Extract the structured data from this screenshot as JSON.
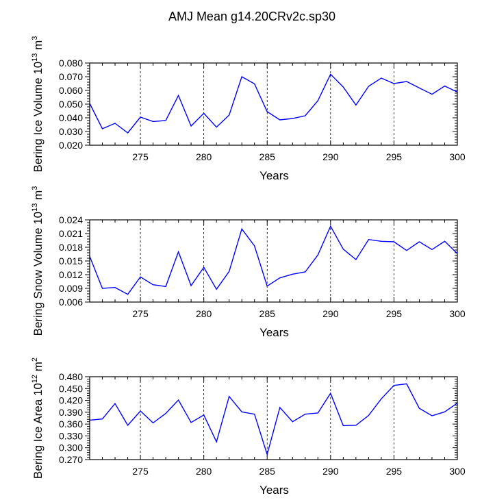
{
  "chart_data": {
    "title": "AMJ Mean g14.20CRv2c.sp30",
    "panels": [
      {
        "name": "ice-volume",
        "type": "line",
        "ylabel": "Bering Ice Volume 10",
        "ylabel_exp": "13",
        "ylabel_unit": " m",
        "ylabel_unit_exp": "3",
        "xlabel": "Years",
        "xlim": [
          271,
          300
        ],
        "ylim": [
          0.02,
          0.08
        ],
        "yticks": [
          "0.020",
          "0.030",
          "0.040",
          "0.050",
          "0.060",
          "0.070",
          "0.080"
        ],
        "xticks": [
          "275",
          "280",
          "285",
          "290",
          "295",
          "300"
        ],
        "color": "#0000ff",
        "x": [
          271,
          272,
          273,
          274,
          275,
          276,
          277,
          278,
          279,
          280,
          281,
          282,
          283,
          284,
          285,
          286,
          287,
          288,
          289,
          290,
          291,
          292,
          293,
          294,
          295,
          296,
          297,
          298,
          299,
          300
        ],
        "values": [
          0.0505,
          0.032,
          0.036,
          0.029,
          0.0405,
          0.0373,
          0.038,
          0.0563,
          0.034,
          0.0433,
          0.0332,
          0.042,
          0.07,
          0.0648,
          0.0445,
          0.0385,
          0.0395,
          0.0415,
          0.0525,
          0.0718,
          0.0625,
          0.0493,
          0.063,
          0.069,
          0.065,
          0.0665,
          0.0618,
          0.0572,
          0.0632,
          0.0588
        ]
      },
      {
        "name": "snow-volume",
        "type": "line",
        "ylabel": "Bering Snow Volume 10",
        "ylabel_exp": "13",
        "ylabel_unit": " m",
        "ylabel_unit_exp": "3",
        "xlabel": "Years",
        "xlim": [
          271,
          300
        ],
        "ylim": [
          0.006,
          0.024
        ],
        "yticks": [
          "0.006",
          "0.009",
          "0.012",
          "0.015",
          "0.018",
          "0.021",
          "0.024"
        ],
        "xticks": [
          "275",
          "280",
          "285",
          "290",
          "295",
          "300"
        ],
        "color": "#0000ff",
        "x": [
          271,
          272,
          273,
          274,
          275,
          276,
          277,
          278,
          279,
          280,
          281,
          282,
          283,
          284,
          285,
          286,
          287,
          288,
          289,
          290,
          291,
          292,
          293,
          294,
          295,
          296,
          297,
          298,
          299,
          300
        ],
        "values": [
          0.016,
          0.009,
          0.0092,
          0.0077,
          0.0115,
          0.0098,
          0.0094,
          0.017,
          0.0096,
          0.0136,
          0.0088,
          0.0127,
          0.022,
          0.0183,
          0.0095,
          0.0113,
          0.0121,
          0.0126,
          0.0163,
          0.0226,
          0.0176,
          0.0153,
          0.0197,
          0.0193,
          0.0192,
          0.0173,
          0.0192,
          0.0175,
          0.0193,
          0.0166
        ]
      },
      {
        "name": "ice-area",
        "type": "line",
        "ylabel": "Bering Ice Area 10",
        "ylabel_exp": "12",
        "ylabel_unit": " m",
        "ylabel_unit_exp": "2",
        "xlabel": "Years",
        "xlim": [
          271,
          300
        ],
        "ylim": [
          0.27,
          0.48
        ],
        "yticks": [
          "0.270",
          "0.300",
          "0.330",
          "0.360",
          "0.390",
          "0.420",
          "0.450",
          "0.480"
        ],
        "xticks": [
          "275",
          "280",
          "285",
          "290",
          "295",
          "300"
        ],
        "color": "#0000ff",
        "x": [
          271,
          272,
          273,
          274,
          275,
          276,
          277,
          278,
          279,
          280,
          281,
          282,
          283,
          284,
          285,
          286,
          287,
          288,
          289,
          290,
          291,
          292,
          293,
          294,
          295,
          296,
          297,
          298,
          299,
          300
        ],
        "values": [
          0.37,
          0.373,
          0.412,
          0.357,
          0.393,
          0.363,
          0.387,
          0.421,
          0.364,
          0.383,
          0.315,
          0.43,
          0.391,
          0.385,
          0.283,
          0.402,
          0.366,
          0.385,
          0.388,
          0.438,
          0.356,
          0.357,
          0.382,
          0.424,
          0.458,
          0.462,
          0.4,
          0.381,
          0.391,
          0.413
        ]
      }
    ]
  }
}
